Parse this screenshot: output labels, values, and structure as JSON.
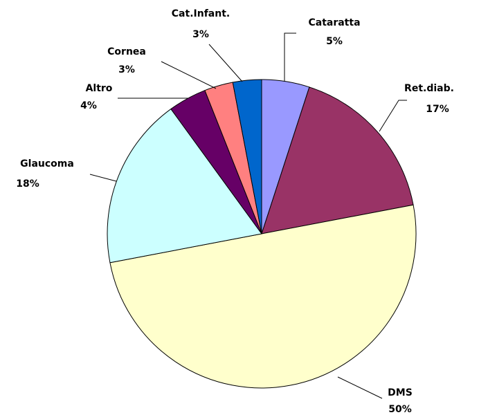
{
  "chart_data": {
    "type": "pie",
    "categories": [
      "Cataratta",
      "Ret.diab.",
      "DMS",
      "Glaucoma",
      "Altro",
      "Cornea",
      "Cat.Infant."
    ],
    "values": [
      5,
      17,
      50,
      18,
      4,
      3,
      3
    ],
    "value_labels": [
      "5%",
      "17%",
      "50%",
      "18%",
      "4%",
      "3%",
      "3%"
    ],
    "colors": [
      "#9999ff",
      "#993366",
      "#ffffcc",
      "#ccffff",
      "#660066",
      "#ff8080",
      "#0066cc"
    ]
  }
}
